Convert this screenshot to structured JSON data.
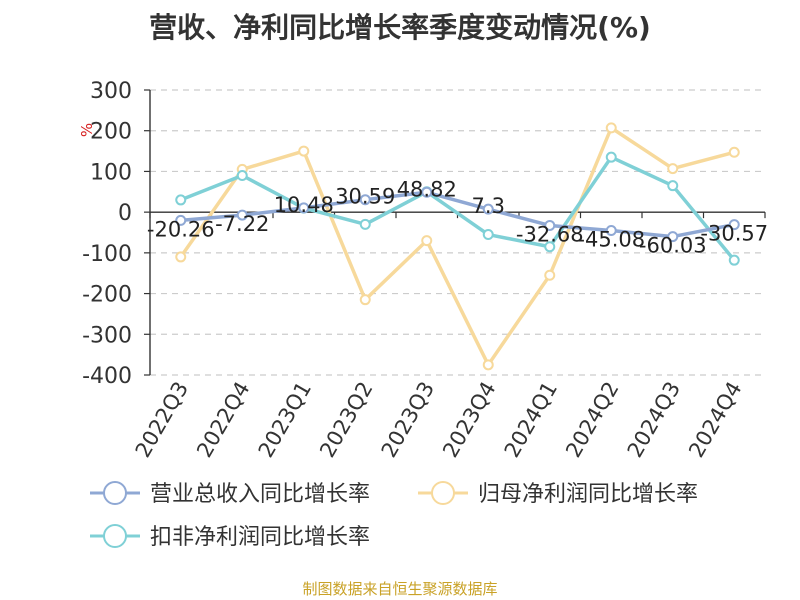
{
  "title": "营收、净利同比增长率季度变动情况(%)",
  "footer": "制图数据来自恒生聚源数据库",
  "chart_data": {
    "type": "line",
    "title": "营收、净利同比增长率季度变动情况(%)",
    "ylabel": "%",
    "ylim": [
      -400,
      300
    ],
    "yticks": [
      300,
      200,
      100,
      0,
      -100,
      -200,
      -300,
      -400
    ],
    "grid": true,
    "legend_position": "bottom",
    "categories": [
      "2022Q3",
      "2022Q4",
      "2023Q1",
      "2023Q2",
      "2023Q3",
      "2023Q4",
      "2024Q1",
      "2024Q2",
      "2024Q3",
      "2024Q4"
    ],
    "series": [
      {
        "name": "营业总收入同比增长率",
        "color": "#8fa8d4",
        "values": [
          -20.26,
          -7.22,
          10.48,
          30.59,
          48.82,
          7.3,
          -32.68,
          -45.08,
          -60.03,
          -30.57
        ],
        "labels": [
          "-20.26",
          "-7.22",
          "10.48",
          "30.59",
          "48.82",
          "7.3",
          "-32.68",
          "-45.08",
          "-60.03",
          "-30.57"
        ]
      },
      {
        "name": "归母净利润同比增长率",
        "color": "#f7d99b",
        "values": [
          -110,
          105,
          150,
          -215,
          -70,
          -375,
          -155,
          207,
          107,
          147
        ]
      },
      {
        "name": "扣非净利润同比增长率",
        "color": "#7fd0d6",
        "values": [
          30,
          90,
          10,
          -30,
          50,
          -55,
          -85,
          135,
          65,
          -118
        ]
      }
    ]
  }
}
